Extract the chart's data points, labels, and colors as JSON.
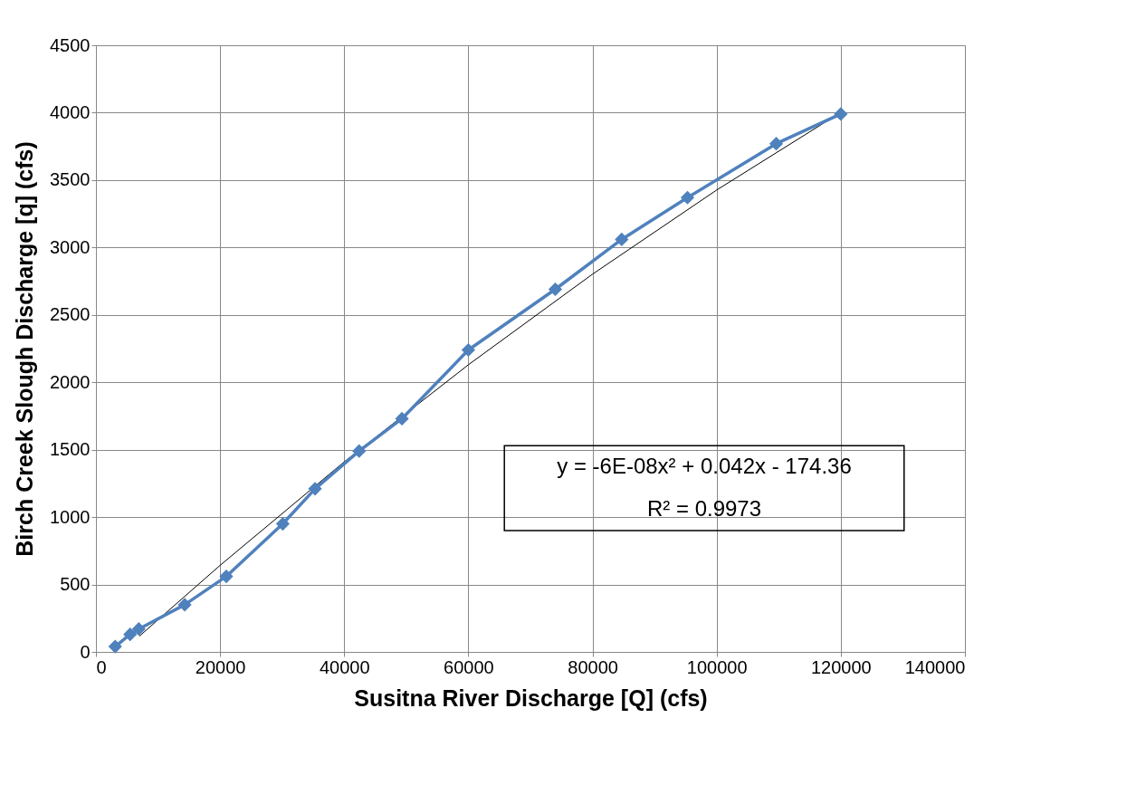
{
  "chart_data": {
    "type": "line",
    "xlabel": "Susitna River Discharge [Q] (cfs)",
    "ylabel": "Birch Creek Slough Discharge [q] (cfs)",
    "xlim": [
      0,
      140000
    ],
    "xticks": [
      0,
      20000,
      40000,
      60000,
      80000,
      100000,
      120000,
      140000
    ],
    "ylim": [
      0,
      4500
    ],
    "yticks": [
      0,
      500,
      1000,
      1500,
      2000,
      2500,
      3000,
      3500,
      4000,
      4500
    ],
    "grid": true,
    "series": [
      {
        "color": "#4f81bd",
        "marker": "diamond",
        "line_style": "solid",
        "x": [
          3100,
          5500,
          6900,
          14300,
          21000,
          30100,
          35300,
          42400,
          49300,
          60000,
          74000,
          84700,
          95300,
          109600,
          120000
        ],
        "values": [
          40,
          130,
          170,
          350,
          560,
          950,
          1210,
          1490,
          1730,
          2240,
          2690,
          3060,
          3370,
          3770,
          3990
        ]
      },
      {
        "type": "line",
        "color": "#000000",
        "marker": "none",
        "line_style": "solid",
        "x": [
          7000,
          20000,
          40000,
          60000,
          80000,
          100000,
          120000
        ],
        "values": [
          117,
          642,
          1410,
          2130,
          2802,
          3426,
          4002
        ]
      }
    ],
    "annotations": [
      "y = -6E-08x² + 0.042x - 174.36",
      "R² = 0.9973"
    ]
  }
}
